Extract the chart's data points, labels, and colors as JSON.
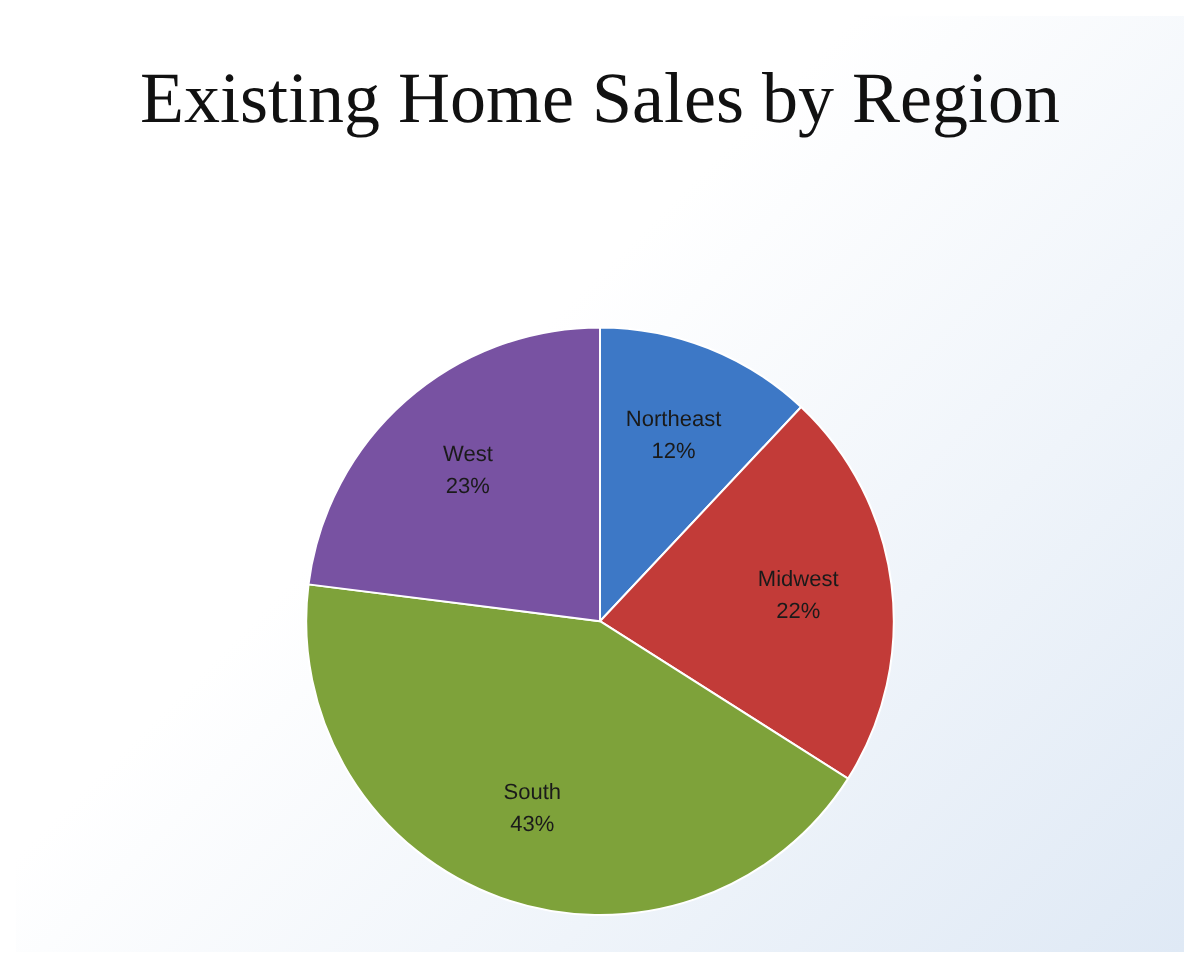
{
  "chart_data": {
    "type": "pie",
    "title": "Existing Home Sales by Region",
    "categories": [
      "Northeast",
      "Midwest",
      "South",
      "West"
    ],
    "values": [
      12,
      22,
      43,
      23
    ],
    "value_labels": [
      "12%",
      "22%",
      "43%",
      "23%"
    ],
    "colors": [
      "#3d78c6",
      "#c23b38",
      "#7ea23a",
      "#7852a2"
    ]
  }
}
